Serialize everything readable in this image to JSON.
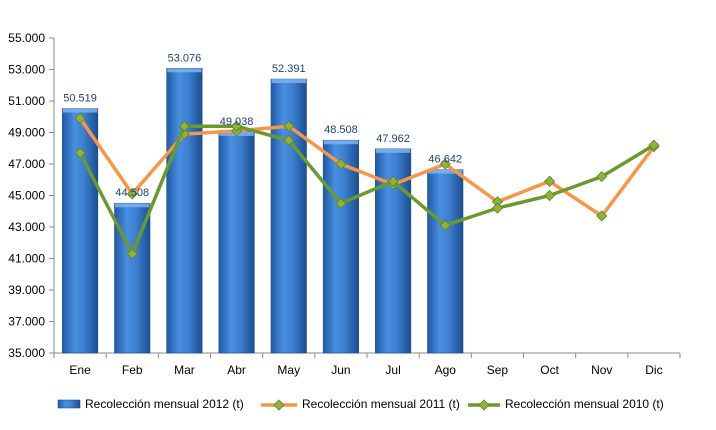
{
  "chart_data": {
    "type": "bar",
    "title": "",
    "xlabel": "",
    "ylabel": "",
    "ylim": [
      35000,
      55000
    ],
    "y_ticks": [
      35000,
      37000,
      39000,
      41000,
      43000,
      45000,
      47000,
      49000,
      51000,
      53000,
      55000
    ],
    "y_tick_labels": [
      "35.000",
      "37.000",
      "39.000",
      "41.000",
      "43.000",
      "45.000",
      "47.000",
      "49.000",
      "51.000",
      "53.000",
      "55.000"
    ],
    "categories": [
      "Ene",
      "Feb",
      "Mar",
      "Abr",
      "May",
      "Jun",
      "Jul",
      "Ago",
      "Sep",
      "Oct",
      "Nov",
      "Dic"
    ],
    "grid": false,
    "legend_position": "bottom",
    "series": [
      {
        "name": "Recolección mensual 2012 (t)",
        "kind": "bar",
        "color": "#2E6FBF",
        "values": [
          50519,
          44508,
          53076,
          49038,
          52391,
          48508,
          47962,
          46642,
          null,
          null,
          null,
          null
        ],
        "data_labels": [
          "50.519",
          "44.508",
          "53.076",
          "49.038",
          "52.391",
          "48.508",
          "47.962",
          "46.642",
          "",
          "",
          "",
          ""
        ]
      },
      {
        "name": "Recolección mensual 2011 (t)",
        "kind": "line",
        "color": "#F79646",
        "marker_color": "#8DB43A",
        "values": [
          49900,
          45100,
          48900,
          49100,
          49400,
          47000,
          45700,
          47000,
          44600,
          45900,
          43700,
          48100
        ]
      },
      {
        "name": "Recolección mensual 2010 (t)",
        "kind": "line",
        "color": "#6A9A2E",
        "marker_color": "#8DB43A",
        "values": [
          47700,
          41300,
          49400,
          49400,
          48500,
          44500,
          45900,
          43100,
          44200,
          45000,
          46200,
          48200
        ]
      }
    ]
  }
}
